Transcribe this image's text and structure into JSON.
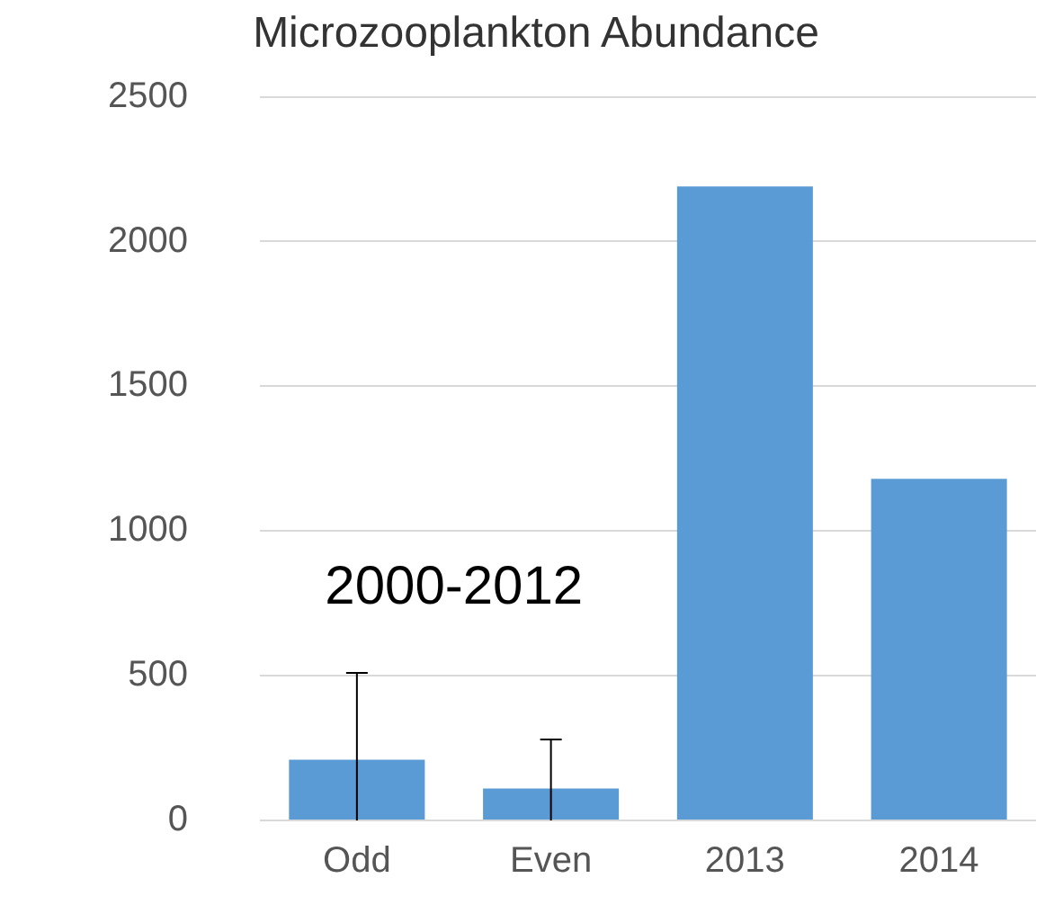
{
  "chart_data": {
    "type": "bar",
    "title": "Microzooplankton Abundance",
    "categories": [
      "Odd",
      "Even",
      "2013",
      "2014"
    ],
    "values": [
      210,
      110,
      2190,
      1180
    ],
    "errors": [
      [
        0,
        510
      ],
      [
        0,
        280
      ],
      null,
      null
    ],
    "color": "#5b9bd5",
    "ylim": [
      0,
      2500
    ],
    "yticks": [
      0,
      500,
      1000,
      1500,
      2000,
      2500
    ],
    "grid": "y",
    "annotations": [
      "2000-2012"
    ]
  }
}
